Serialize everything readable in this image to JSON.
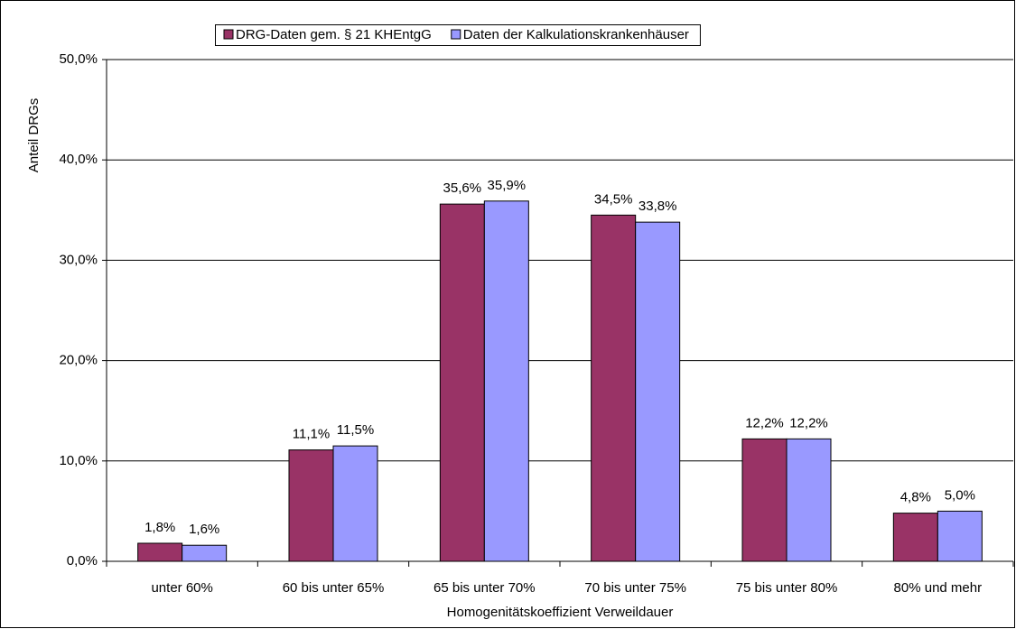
{
  "chart_data": {
    "type": "bar",
    "x_label": "Homogenitätskoeffizient Verweildauer",
    "y_label": "Anteil DRGs",
    "categories": [
      "unter 60%",
      "60 bis unter 65%",
      "65 bis unter 70%",
      "70 bis unter 75%",
      "75 bis unter 80%",
      "80% und mehr"
    ],
    "series": [
      {
        "name": "DRG-Daten gem. § 21 KHEntgG",
        "color": "#993366",
        "values": [
          1.8,
          11.1,
          35.6,
          34.5,
          12.2,
          4.8
        ],
        "value_labels": [
          "1,8%",
          "11,1%",
          "35,6%",
          "34,5%",
          "12,2%",
          "4,8%"
        ]
      },
      {
        "name": "Daten der Kalkulationskrankenhäuser",
        "color": "#9999FF",
        "values": [
          1.6,
          11.5,
          35.9,
          33.8,
          12.2,
          5.0
        ],
        "value_labels": [
          "1,6%",
          "11,5%",
          "35,9%",
          "33,8%",
          "12,2%",
          "5,0%"
        ]
      }
    ],
    "ylim": [
      0,
      50
    ],
    "yticks": [
      {
        "value": 0,
        "label": "0,0%"
      },
      {
        "value": 10,
        "label": "10,0%"
      },
      {
        "value": 20,
        "label": "20,0%"
      },
      {
        "value": 30,
        "label": "30,0%"
      },
      {
        "value": 40,
        "label": "40,0%"
      },
      {
        "value": 50,
        "label": "50,0%"
      }
    ],
    "grid": true,
    "legend": "top"
  }
}
